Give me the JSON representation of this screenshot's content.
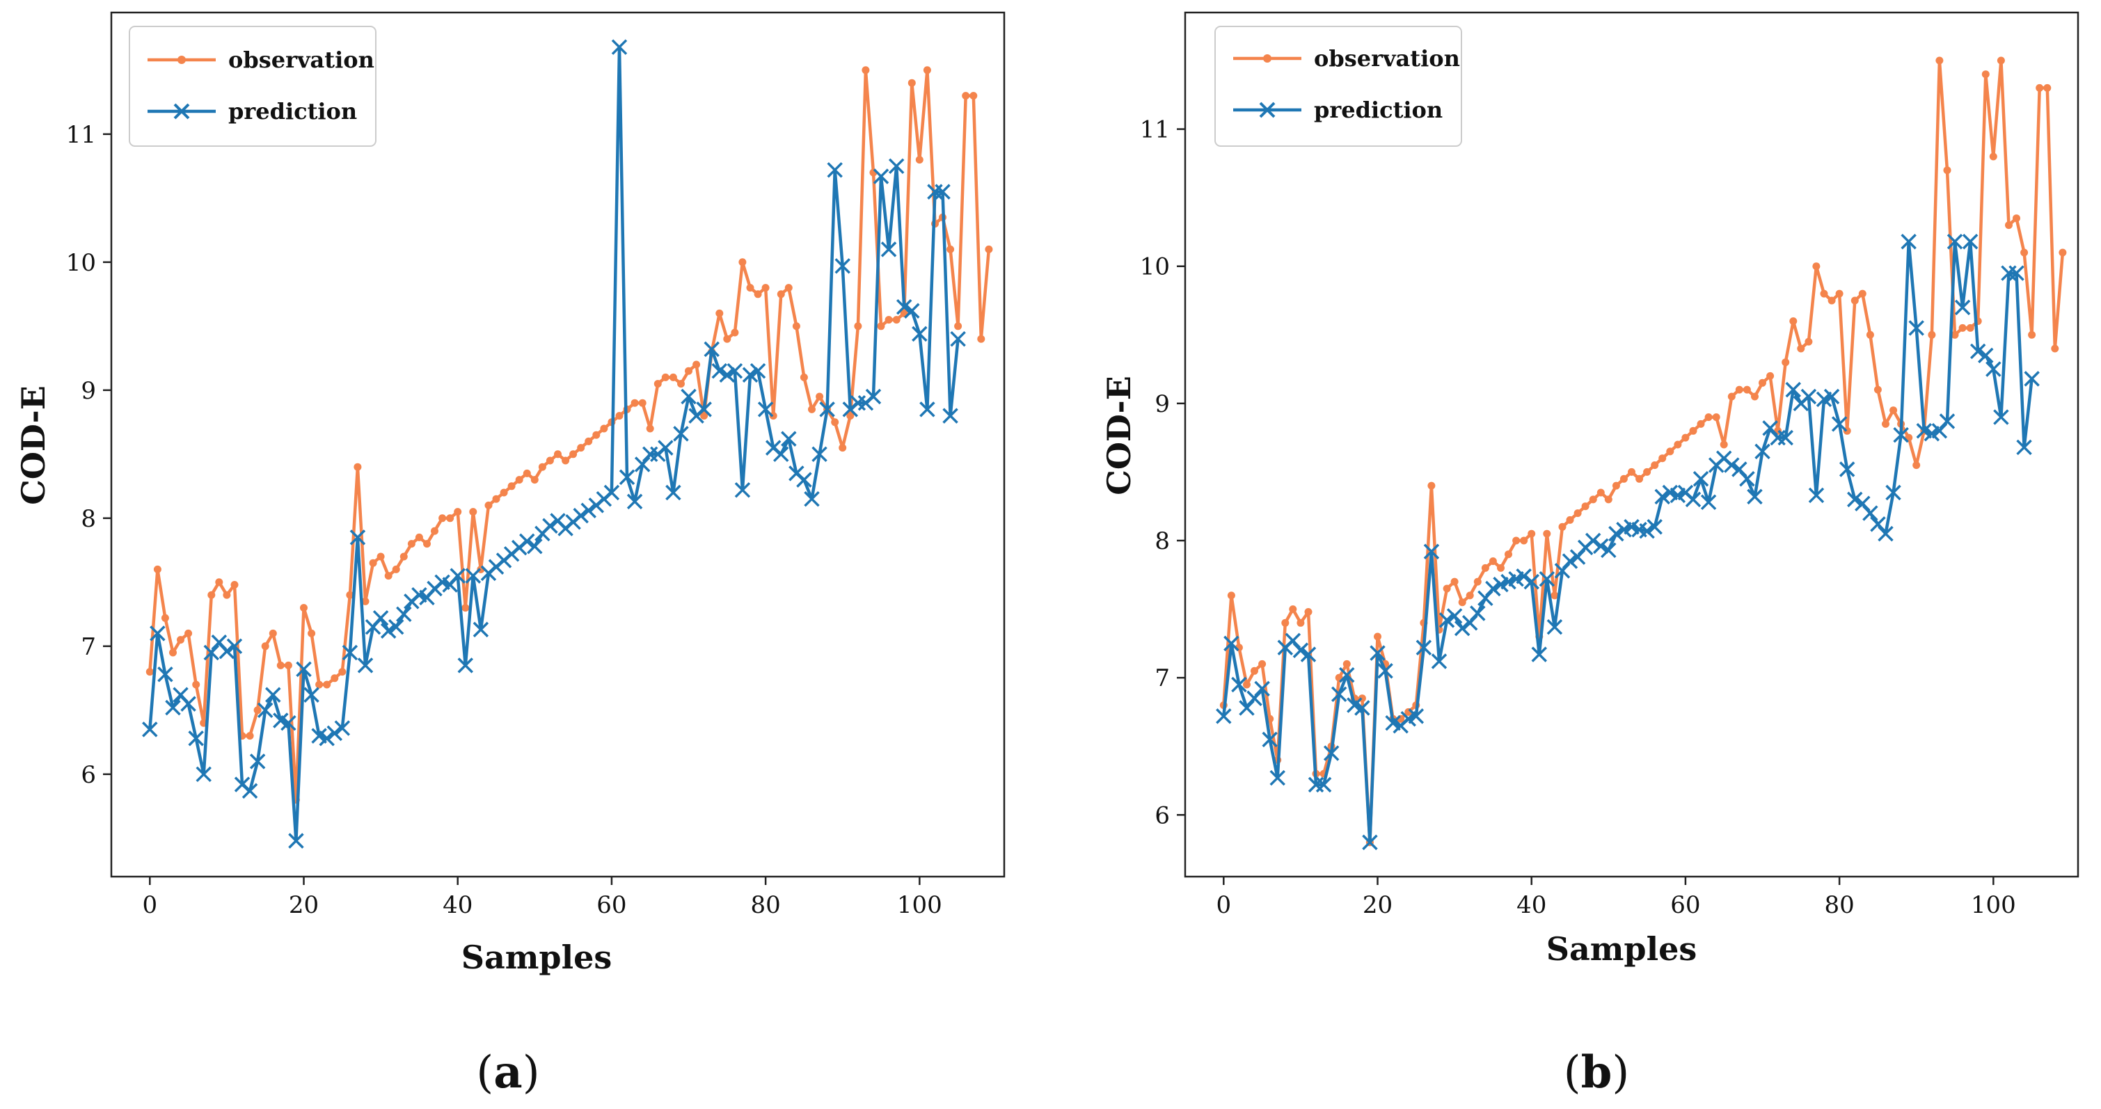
{
  "figure": {
    "panels": [
      {
        "label_open": "(",
        "label_letter": "a",
        "label_close": ")"
      },
      {
        "label_open": "(",
        "label_letter": "b",
        "label_close": ")"
      }
    ]
  },
  "chart_data": [
    {
      "type": "line",
      "panel": "a",
      "xlabel": "Samples",
      "ylabel": "COD-E",
      "xlim": [
        -5,
        111
      ],
      "ylim": [
        5.2,
        11.95
      ],
      "xticks": [
        0,
        20,
        40,
        60,
        80,
        100
      ],
      "yticks": [
        6,
        7,
        8,
        9,
        10,
        11
      ],
      "grid": false,
      "legend_position": "top-left",
      "series": [
        {
          "name": "observation",
          "color": "#F4844C",
          "marker": "dot",
          "values": [
            6.8,
            7.6,
            7.22,
            6.95,
            7.05,
            7.1,
            6.7,
            6.4,
            7.4,
            7.5,
            7.4,
            7.48,
            6.3,
            6.3,
            6.5,
            7.0,
            7.1,
            6.85,
            6.85,
            5.8,
            7.3,
            7.1,
            6.7,
            6.7,
            6.75,
            6.8,
            7.4,
            8.4,
            7.35,
            7.65,
            7.7,
            7.55,
            7.6,
            7.7,
            7.8,
            7.85,
            7.8,
            7.9,
            8.0,
            8.0,
            8.05,
            7.3,
            8.05,
            7.6,
            8.1,
            8.15,
            8.2,
            8.25,
            8.3,
            8.35,
            8.3,
            8.4,
            8.45,
            8.5,
            8.45,
            8.5,
            8.55,
            8.6,
            8.65,
            8.7,
            8.75,
            8.8,
            8.85,
            8.9,
            8.9,
            8.7,
            9.05,
            9.1,
            9.1,
            9.05,
            9.15,
            9.2,
            8.8,
            9.3,
            9.6,
            9.4,
            9.45,
            10.0,
            9.8,
            9.75,
            9.8,
            8.8,
            9.75,
            9.8,
            9.5,
            9.1,
            8.85,
            8.95,
            8.85,
            8.75,
            8.55,
            8.8,
            9.5,
            11.5,
            10.7,
            9.5,
            9.55,
            9.55,
            9.6,
            11.4,
            10.8,
            11.5,
            10.3,
            10.35,
            10.1,
            9.5,
            11.3,
            11.3,
            9.4,
            10.1
          ]
        },
        {
          "name": "prediction",
          "color": "#1F77B4",
          "marker": "x",
          "values": [
            6.35,
            7.1,
            6.78,
            6.52,
            6.62,
            6.55,
            6.28,
            6.0,
            6.95,
            7.03,
            6.96,
            7.0,
            5.92,
            5.87,
            6.1,
            6.5,
            6.62,
            6.42,
            6.4,
            5.48,
            6.82,
            6.62,
            6.3,
            6.28,
            6.32,
            6.36,
            6.95,
            7.85,
            6.85,
            7.15,
            7.22,
            7.12,
            7.15,
            7.25,
            7.35,
            7.4,
            7.38,
            7.45,
            7.5,
            7.48,
            7.55,
            6.85,
            7.55,
            7.13,
            7.57,
            7.62,
            7.67,
            7.72,
            7.77,
            7.82,
            7.78,
            7.88,
            7.94,
            7.98,
            7.92,
            7.97,
            8.02,
            8.06,
            8.1,
            8.15,
            8.2,
            11.68,
            8.32,
            8.13,
            8.42,
            8.5,
            8.5,
            8.55,
            8.2,
            8.66,
            8.95,
            8.8,
            8.85,
            9.32,
            9.15,
            9.12,
            9.15,
            8.22,
            9.12,
            9.15,
            8.85,
            8.55,
            8.5,
            8.62,
            8.35,
            8.3,
            8.15,
            8.5,
            8.85,
            10.72,
            9.97,
            8.85,
            8.9,
            8.9,
            8.95,
            10.67,
            10.1,
            10.75,
            9.65,
            9.62,
            9.44,
            8.85,
            10.55,
            10.55,
            8.8,
            9.4
          ]
        }
      ]
    },
    {
      "type": "line",
      "panel": "b",
      "xlabel": "Samples",
      "ylabel": "COD-E",
      "xlim": [
        -5,
        111
      ],
      "ylim": [
        5.55,
        11.85
      ],
      "xticks": [
        0,
        20,
        40,
        60,
        80,
        100
      ],
      "yticks": [
        6,
        7,
        8,
        9,
        10,
        11
      ],
      "grid": false,
      "legend_position": "top-left",
      "series": [
        {
          "name": "observation",
          "color": "#F4844C",
          "marker": "dot",
          "values": [
            6.8,
            7.6,
            7.22,
            6.95,
            7.05,
            7.1,
            6.7,
            6.4,
            7.4,
            7.5,
            7.4,
            7.48,
            6.3,
            6.3,
            6.5,
            7.0,
            7.1,
            6.85,
            6.85,
            5.8,
            7.3,
            7.1,
            6.7,
            6.7,
            6.75,
            6.8,
            7.4,
            8.4,
            7.35,
            7.65,
            7.7,
            7.55,
            7.6,
            7.7,
            7.8,
            7.85,
            7.8,
            7.9,
            8.0,
            8.0,
            8.05,
            7.3,
            8.05,
            7.6,
            8.1,
            8.15,
            8.2,
            8.25,
            8.3,
            8.35,
            8.3,
            8.4,
            8.45,
            8.5,
            8.45,
            8.5,
            8.55,
            8.6,
            8.65,
            8.7,
            8.75,
            8.8,
            8.85,
            8.9,
            8.9,
            8.7,
            9.05,
            9.1,
            9.1,
            9.05,
            9.15,
            9.2,
            8.8,
            9.3,
            9.6,
            9.4,
            9.45,
            10.0,
            9.8,
            9.75,
            9.8,
            8.8,
            9.75,
            9.8,
            9.5,
            9.1,
            8.85,
            8.95,
            8.85,
            8.75,
            8.55,
            8.8,
            9.5,
            11.5,
            10.7,
            9.5,
            9.55,
            9.55,
            9.6,
            11.4,
            10.8,
            11.5,
            10.3,
            10.35,
            10.1,
            9.5,
            11.3,
            11.3,
            9.4,
            10.1
          ]
        },
        {
          "name": "prediction",
          "color": "#1F77B4",
          "marker": "x",
          "values": [
            6.72,
            7.25,
            6.95,
            6.78,
            6.85,
            6.92,
            6.55,
            6.27,
            7.22,
            7.27,
            7.2,
            7.17,
            6.22,
            6.22,
            6.45,
            6.88,
            7.02,
            6.8,
            6.78,
            5.8,
            7.18,
            7.05,
            6.67,
            6.65,
            6.7,
            6.72,
            7.22,
            7.92,
            7.12,
            7.42,
            7.45,
            7.36,
            7.4,
            7.47,
            7.58,
            7.65,
            7.68,
            7.7,
            7.72,
            7.74,
            7.7,
            7.17,
            7.72,
            7.37,
            7.78,
            7.85,
            7.88,
            7.95,
            8.0,
            7.96,
            7.93,
            8.05,
            8.08,
            8.1,
            8.08,
            8.07,
            8.1,
            8.32,
            8.35,
            8.33,
            8.35,
            8.3,
            8.45,
            8.28,
            8.55,
            8.6,
            8.55,
            8.52,
            8.45,
            8.32,
            8.65,
            8.82,
            8.75,
            8.75,
            9.1,
            9.0,
            9.05,
            8.33,
            9.03,
            9.05,
            8.85,
            8.52,
            8.3,
            8.27,
            8.2,
            8.12,
            8.05,
            8.35,
            8.77,
            10.18,
            9.55,
            8.8,
            8.78,
            8.8,
            8.87,
            10.18,
            9.7,
            10.18,
            9.38,
            9.35,
            9.25,
            8.9,
            9.95,
            9.95,
            8.68,
            9.18
          ]
        }
      ]
    }
  ]
}
